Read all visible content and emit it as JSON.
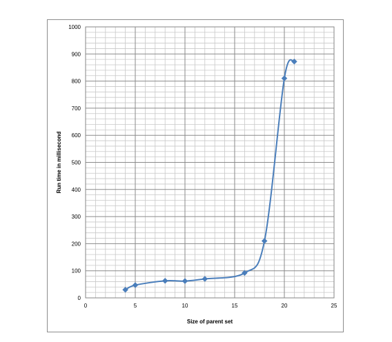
{
  "chart_data": {
    "type": "scatter",
    "title": "",
    "xlabel": "Size of parent set",
    "ylabel": "Run time in millisecond",
    "xlim": [
      0,
      25
    ],
    "ylim": [
      0,
      1000
    ],
    "x_ticks": [
      0,
      5,
      10,
      15,
      20,
      25
    ],
    "y_ticks": [
      0,
      100,
      200,
      300,
      400,
      500,
      600,
      700,
      800,
      900,
      1000
    ],
    "grid": true,
    "legend": "none",
    "smooth_line": true,
    "series": [
      {
        "color": "#4a7ebb",
        "x": [
          4,
          5,
          8,
          10,
          12,
          16,
          18,
          20,
          21
        ],
        "y": [
          30,
          47,
          63,
          62,
          70,
          92,
          210,
          810,
          872
        ]
      }
    ]
  }
}
